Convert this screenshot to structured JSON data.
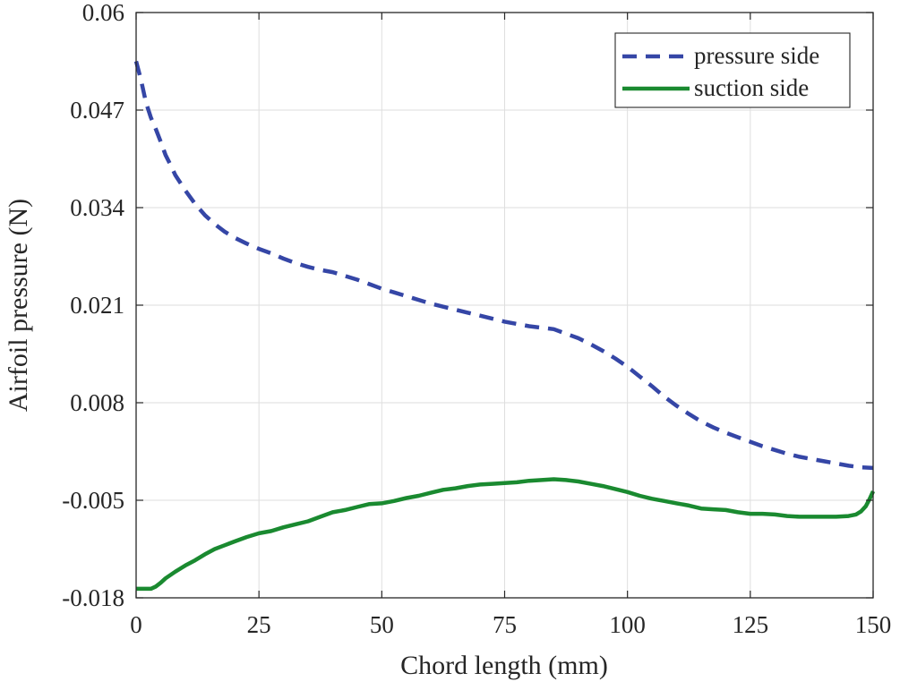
{
  "chart_data": {
    "type": "line",
    "title": "",
    "xlabel": "Chord length (mm)",
    "ylabel": "Airfoil pressure (N)",
    "xlim": [
      0,
      150
    ],
    "ylim": [
      -0.018,
      0.06
    ],
    "xticks": [
      0,
      25,
      50,
      75,
      100,
      125,
      150
    ],
    "yticks": [
      -0.018,
      -0.005,
      0.008,
      0.021,
      0.034,
      0.047,
      0.06
    ],
    "xtick_labels": [
      "0",
      "25",
      "50",
      "75",
      "100",
      "125",
      "150"
    ],
    "ytick_labels": [
      "-0.018",
      "-0.005",
      "0.008",
      "0.021",
      "0.034",
      "0.047",
      "0.06"
    ],
    "grid": true,
    "legend_position": "top-right",
    "series": [
      {
        "name": "pressure side",
        "color": "#3546a6",
        "style": "dashed",
        "x": [
          0,
          1,
          2,
          3,
          4,
          5,
          6,
          7,
          8,
          10,
          12,
          14,
          16,
          18,
          20,
          22.5,
          25,
          27.5,
          30,
          32.5,
          35,
          37.5,
          40,
          42.5,
          45,
          47.5,
          50,
          52.5,
          55,
          57.5,
          60,
          62.5,
          65,
          67.5,
          70,
          72.5,
          75,
          77.5,
          80,
          82.5,
          85,
          87.5,
          90,
          92.5,
          95,
          97.5,
          100,
          102.5,
          105,
          107.5,
          110,
          112.5,
          115,
          117.5,
          120,
          122.5,
          125,
          127.5,
          130,
          132.5,
          135,
          137.5,
          140,
          142.5,
          145,
          147.5,
          150
        ],
        "values": [
          0.0535,
          0.051,
          0.048,
          0.046,
          0.0445,
          0.0428,
          0.041,
          0.0397,
          0.0383,
          0.0363,
          0.0345,
          0.033,
          0.0318,
          0.0308,
          0.03,
          0.0292,
          0.0285,
          0.0279,
          0.0272,
          0.0266,
          0.0261,
          0.0257,
          0.0254,
          0.0249,
          0.0244,
          0.0238,
          0.0232,
          0.0227,
          0.0222,
          0.0217,
          0.0212,
          0.0208,
          0.0204,
          0.02,
          0.0196,
          0.0192,
          0.0188,
          0.0185,
          0.0182,
          0.018,
          0.0178,
          0.0172,
          0.0166,
          0.0158,
          0.0149,
          0.0139,
          0.0128,
          0.0115,
          0.0102,
          0.0088,
          0.0076,
          0.0065,
          0.0055,
          0.0047,
          0.004,
          0.0034,
          0.0028,
          0.0022,
          0.0017,
          0.0012,
          0.0008,
          0.0005,
          0.0002,
          -0.0001,
          -0.0004,
          -0.0006,
          -0.0007
        ]
      },
      {
        "name": "suction side",
        "color": "#1a8a30",
        "style": "solid",
        "x": [
          0,
          1,
          2,
          3,
          4,
          5,
          6,
          8,
          10,
          12,
          14,
          16,
          18,
          20,
          22.5,
          25,
          27.5,
          30,
          32.5,
          35,
          37.5,
          40,
          42.5,
          45,
          47.5,
          50,
          52.5,
          55,
          57.5,
          60,
          62.5,
          65,
          67.5,
          70,
          72.5,
          75,
          77.5,
          80,
          82.5,
          85,
          87.5,
          90,
          92.5,
          95,
          97.5,
          100,
          102.5,
          105,
          107.5,
          110,
          112.5,
          115,
          117.5,
          120,
          122.5,
          125,
          127.5,
          130,
          132.5,
          135,
          137.5,
          140,
          142.5,
          145,
          146.5,
          147.5,
          148.5,
          149.3,
          150
        ],
        "values": [
          -0.0168,
          -0.0168,
          -0.0168,
          -0.0168,
          -0.0165,
          -0.016,
          -0.0154,
          -0.0145,
          -0.0137,
          -0.013,
          -0.0122,
          -0.0115,
          -0.011,
          -0.0105,
          -0.0099,
          -0.0094,
          -0.0091,
          -0.0086,
          -0.0082,
          -0.0078,
          -0.0072,
          -0.0066,
          -0.0063,
          -0.0059,
          -0.0055,
          -0.0054,
          -0.0051,
          -0.0047,
          -0.0044,
          -0.004,
          -0.0036,
          -0.0034,
          -0.0031,
          -0.0029,
          -0.0028,
          -0.0027,
          -0.0026,
          -0.0024,
          -0.0023,
          -0.0022,
          -0.0023,
          -0.0025,
          -0.0028,
          -0.0031,
          -0.0035,
          -0.0039,
          -0.0044,
          -0.0048,
          -0.0051,
          -0.0054,
          -0.0057,
          -0.0061,
          -0.0062,
          -0.0063,
          -0.0066,
          -0.0068,
          -0.0068,
          -0.0069,
          -0.0071,
          -0.0072,
          -0.0072,
          -0.0072,
          -0.0072,
          -0.0071,
          -0.0069,
          -0.0065,
          -0.0058,
          -0.0048,
          -0.0038
        ]
      }
    ]
  }
}
